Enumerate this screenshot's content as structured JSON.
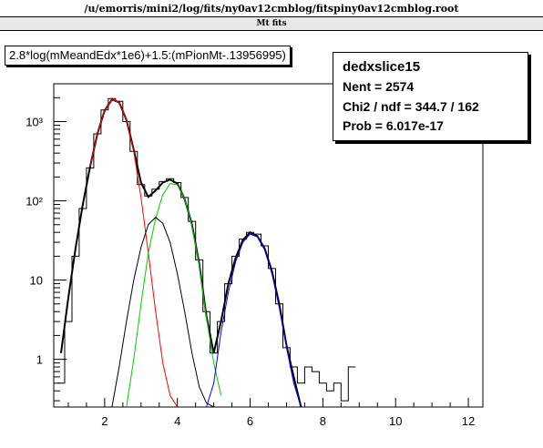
{
  "window": {
    "title": "/u/emorris/mini2/log/fits/ny0av12cmblog/fitspiny0av12cmblog.root",
    "subtitle": "Mt fits"
  },
  "expression": "2.8*log(mMeandEdx*1e6)+1.5:(mPionMt-.13956995)",
  "stats": {
    "name": "dedxslice15",
    "nent": "Nent = 2574",
    "chi2": "Chi2 / ndf = 344.7 / 162",
    "prob": "Prob  = 6.017e-17"
  },
  "colors": {
    "histogram": "#000000",
    "total_fit": "#000000",
    "pion_fit": "#ff0000",
    "kaon_fit": "#00cc00",
    "proton_fit": "#000000",
    "electron_fit": "#0000ff"
  },
  "chart_data": {
    "type": "line",
    "title": "",
    "xlabel": "",
    "ylabel": "",
    "xlim": [
      0.6,
      12.4
    ],
    "ylim": [
      0.25,
      3000
    ],
    "y_scale": "log",
    "x_ticks": [
      "2",
      "4",
      "6",
      "8",
      "10",
      "12"
    ],
    "y_ticks": [
      "1",
      "10",
      "10²",
      "10³"
    ],
    "series": [
      {
        "style": "histogram",
        "x": [
          0.8,
          1.0,
          1.2,
          1.4,
          1.6,
          1.8,
          2.0,
          2.2,
          2.4,
          2.6,
          2.8,
          3.0,
          3.2,
          3.4,
          3.6,
          3.8,
          4.0,
          4.2,
          4.4,
          4.6,
          4.8,
          5.0,
          5.2,
          5.4,
          5.6,
          5.8,
          6.0,
          6.2,
          6.4,
          6.6,
          6.8,
          7.0,
          7.2,
          7.4,
          7.6,
          7.8,
          8.0,
          8.2,
          8.4,
          8.6,
          8.8
        ],
        "y": [
          0.5,
          3,
          20,
          80,
          260,
          700,
          1400,
          1950,
          1800,
          1000,
          420,
          160,
          115,
          140,
          175,
          190,
          170,
          110,
          55,
          18,
          4,
          1.2,
          3,
          9,
          20,
          33,
          40,
          38,
          27,
          14,
          5,
          1.4,
          0.8,
          0.5,
          0.8,
          0.7,
          0.5,
          0.4,
          0.5,
          0.3,
          0.8
        ]
      },
      {
        "style": "total_fit",
        "x": [
          0.8,
          1.0,
          1.2,
          1.4,
          1.6,
          1.8,
          2.0,
          2.2,
          2.4,
          2.6,
          2.8,
          3.0,
          3.2,
          3.4,
          3.6,
          3.8,
          4.0,
          4.2,
          4.4,
          4.6,
          4.8,
          5.0,
          5.2,
          5.4,
          5.6,
          5.8,
          6.0,
          6.2,
          6.4,
          6.6,
          6.8,
          7.0,
          7.2,
          7.4
        ],
        "y": [
          1.2,
          6,
          25,
          90,
          270,
          700,
          1380,
          1900,
          1750,
          1050,
          440,
          170,
          112,
          135,
          170,
          185,
          165,
          105,
          50,
          16,
          3.5,
          1.2,
          3,
          9,
          19,
          32,
          40,
          36,
          25,
          13,
          5,
          1.5,
          0.6,
          0.25
        ]
      },
      {
        "style": "pion_fit",
        "x": [
          1.6,
          1.8,
          2.0,
          2.2,
          2.4,
          2.6,
          2.8,
          3.0,
          3.2,
          3.4,
          3.6,
          3.8,
          4.0
        ],
        "y": [
          270,
          700,
          1380,
          1900,
          1750,
          1050,
          420,
          110,
          22,
          4,
          0.9,
          0.35,
          0.25
        ]
      },
      {
        "style": "kaon_fit",
        "x": [
          2.6,
          2.8,
          3.0,
          3.2,
          3.4,
          3.6,
          3.8,
          4.0,
          4.2,
          4.4,
          4.6,
          4.8,
          5.0,
          5.2
        ],
        "y": [
          0.25,
          1,
          5,
          22,
          60,
          120,
          165,
          160,
          105,
          48,
          15,
          3.3,
          0.9,
          0.35
        ]
      },
      {
        "style": "proton_fit",
        "x": [
          2.2,
          2.4,
          2.6,
          2.8,
          3.0,
          3.2,
          3.4,
          3.6,
          3.8,
          4.0,
          4.2,
          4.4,
          4.6,
          4.8,
          5.0,
          5.2
        ],
        "y": [
          0.25,
          0.8,
          3,
          10,
          26,
          50,
          62,
          52,
          30,
          12,
          4,
          1.2,
          0.45,
          0.28,
          0.25,
          0.25
        ]
      },
      {
        "style": "electron_fit",
        "x": [
          4.8,
          5.0,
          5.2,
          5.4,
          5.6,
          5.8,
          6.0,
          6.2,
          6.4,
          6.6,
          6.8,
          7.0,
          7.2,
          7.4
        ],
        "y": [
          0.25,
          0.5,
          2.2,
          7,
          17,
          30,
          38,
          35,
          24,
          12,
          4.5,
          1.4,
          0.5,
          0.25
        ]
      }
    ]
  }
}
